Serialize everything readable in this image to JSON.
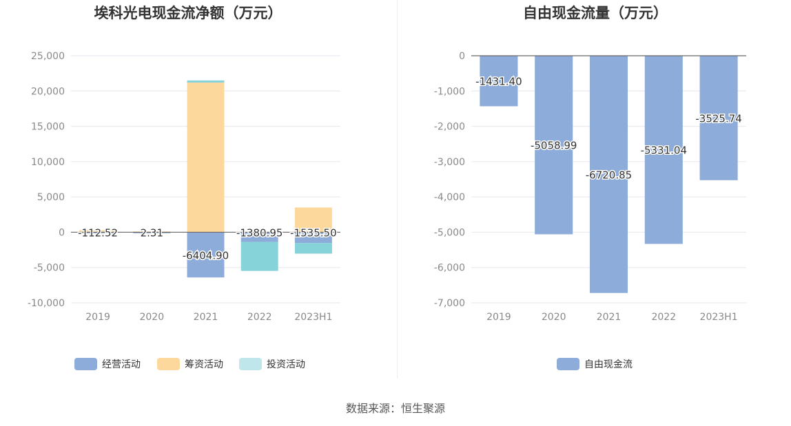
{
  "colors": {
    "operating": "#8eacd9",
    "financing": "#fdd89c",
    "investing": "#86d3da",
    "legend_investing": "#bfe6ea",
    "free_cash": "#8eacd9",
    "grid": "#e6e6ee",
    "axis": "#666666",
    "tick_text": "#888888"
  },
  "chart_data": [
    {
      "type": "bar",
      "stacked": true,
      "title": "埃科光电现金流净额（万元）",
      "categories": [
        "2019",
        "2020",
        "2021",
        "2022",
        "2023H1"
      ],
      "ylim": [
        -10000,
        25000
      ],
      "yticks": [
        -10000,
        -5000,
        0,
        5000,
        10000,
        15000,
        20000,
        25000
      ],
      "ytick_labels": [
        "-10,000",
        "-5,000",
        "0",
        "5,000",
        "10,000",
        "15,000",
        "20,000",
        "25,000"
      ],
      "series": [
        {
          "name": "经营活动",
          "key": "operating",
          "values": [
            -112.52,
            2.31,
            -6404.9,
            -1380.95,
            -1535.5
          ],
          "labels": [
            "-112.52",
            "2.31",
            "-6404.90",
            "-1380.95",
            "-1535.50"
          ]
        },
        {
          "name": "筹资活动",
          "key": "financing",
          "values": [
            300,
            100,
            21200,
            0,
            3500
          ]
        },
        {
          "name": "投资活动",
          "key": "investing",
          "values": [
            0,
            0,
            300,
            -4100,
            -1500
          ]
        }
      ],
      "legend": [
        "经营活动",
        "筹资活动",
        "投资活动"
      ],
      "legend_position": "bottom"
    },
    {
      "type": "bar",
      "title": "自由现金流量（万元）",
      "categories": [
        "2019",
        "2020",
        "2021",
        "2022",
        "2023H1"
      ],
      "ylim": [
        -7000,
        0
      ],
      "yticks": [
        -7000,
        -6000,
        -5000,
        -4000,
        -3000,
        -2000,
        -1000,
        0
      ],
      "ytick_labels": [
        "-7,000",
        "-6,000",
        "-5,000",
        "-4,000",
        "-3,000",
        "-2,000",
        "-1,000",
        "0"
      ],
      "series": [
        {
          "name": "自由现金流",
          "key": "free_cash",
          "values": [
            -1431.4,
            -5058.99,
            -6720.85,
            -5331.04,
            -3525.74
          ],
          "labels": [
            "-1431.40",
            "-5058.99",
            "-6720.85",
            "-5331.04",
            "-3525.74"
          ]
        }
      ],
      "legend": [
        "自由现金流"
      ],
      "legend_position": "bottom"
    }
  ],
  "source": "数据来源：恒生聚源"
}
